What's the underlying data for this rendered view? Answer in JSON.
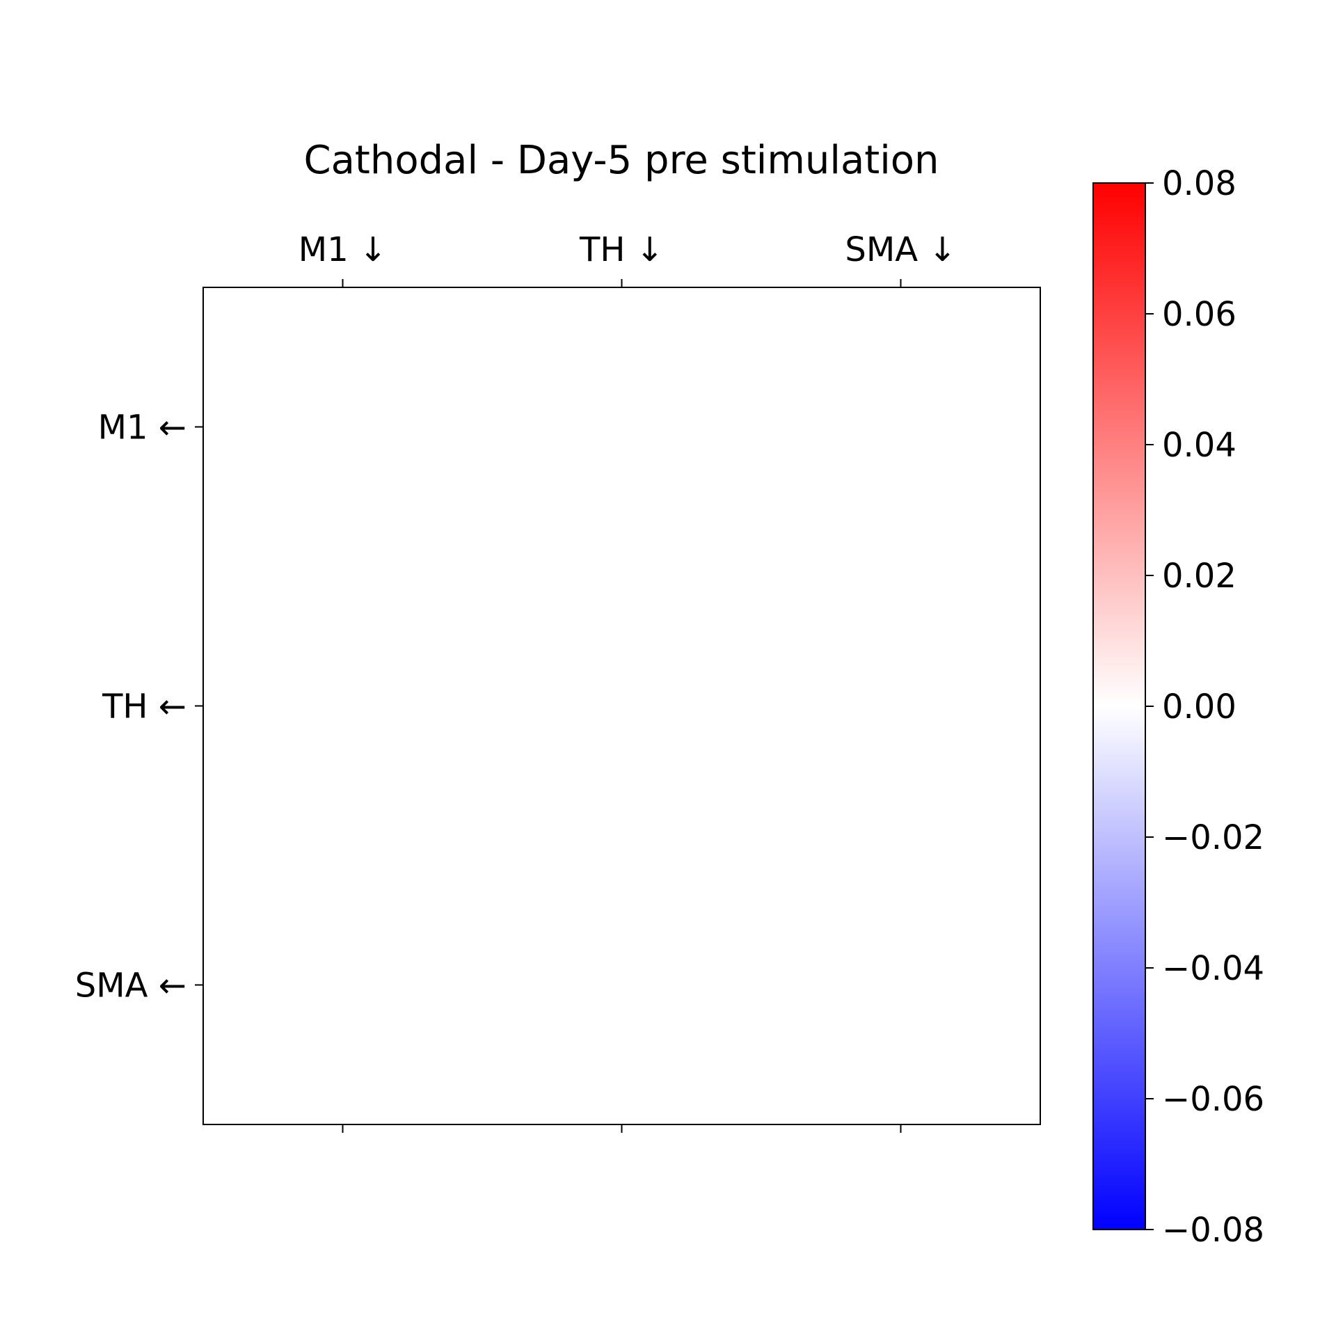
{
  "chart_data": {
    "type": "heatmap",
    "title": "Cathodal - Day-5 pre stimulation",
    "x_categories": [
      "M1 ↓",
      "TH ↓",
      "SMA ↓"
    ],
    "y_categories": [
      "M1 ←",
      "TH ←",
      "SMA ←"
    ],
    "x_axis_position": "top",
    "values": [
      [
        0,
        0,
        0
      ],
      [
        0,
        0,
        0
      ],
      [
        0,
        0,
        0
      ]
    ],
    "colormap": "bwr",
    "color_low": "#0000ff",
    "color_mid": "#ffffff",
    "color_high": "#ff0000",
    "vmin": -0.08,
    "vmax": 0.08,
    "colorbar_ticks": [
      0.08,
      0.06,
      0.04,
      0.02,
      0.0,
      -0.02,
      -0.04,
      -0.06,
      -0.08
    ],
    "colorbar_tick_labels": [
      "0.08",
      "0.06",
      "0.04",
      "0.02",
      "0.00",
      "−0.02",
      "−0.04",
      "−0.06",
      "−0.08"
    ],
    "grid": false
  }
}
